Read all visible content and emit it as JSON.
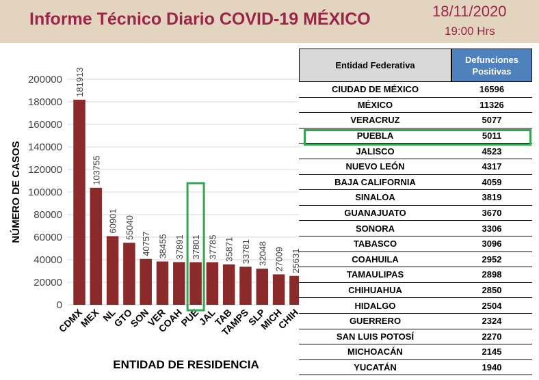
{
  "header": {
    "title": "Informe Técnico Diario COVID-19 MÉXICO",
    "date": "18/11/2020",
    "time": "19:00 Hrs"
  },
  "colors": {
    "bar": "#8b2a2a",
    "header_bg": "#e3d4bf",
    "accent": "#9d2449",
    "table_header": "#4f81bd",
    "highlight": "#2fa84f"
  },
  "chart_data": {
    "type": "bar",
    "xlabel": "ENTIDAD DE RESIDENCIA",
    "ylabel": "NÚMERO DE CASOS",
    "ylim": [
      0,
      200000
    ],
    "yticks": [
      "0",
      "20000",
      "40000",
      "60000",
      "80000",
      "100000",
      "120000",
      "140000",
      "160000",
      "180000",
      "200000"
    ],
    "grid": true,
    "categories": [
      "CDMX",
      "MEX",
      "NL",
      "GTO",
      "SON",
      "VER",
      "COAH",
      "PUE",
      "JAL",
      "TAB",
      "TAMPS",
      "SLP",
      "MICH",
      "CHIH"
    ],
    "values": [
      181913,
      103755,
      60901,
      55040,
      40757,
      38455,
      37891,
      37801,
      37785,
      35871,
      33781,
      32048,
      27009,
      25631
    ],
    "value_labels": [
      "181913",
      "103755",
      "60901",
      "55040",
      "40757",
      "38455",
      "37891",
      "37801",
      "37785",
      "35871",
      "33781",
      "32048",
      "27009",
      "25631"
    ],
    "highlight": "PUE"
  },
  "table": {
    "col_name": "Entidad Federativa",
    "col_value": "Defunciones Positivas",
    "highlight": "PUEBLA",
    "rows": [
      {
        "name": "CIUDAD DE MÉXICO",
        "value": "16596"
      },
      {
        "name": "MÉXICO",
        "value": "11326"
      },
      {
        "name": "VERACRUZ",
        "value": "5077"
      },
      {
        "name": "PUEBLA",
        "value": "5011"
      },
      {
        "name": "JALISCO",
        "value": "4523"
      },
      {
        "name": "NUEVO LEÓN",
        "value": "4317"
      },
      {
        "name": "BAJA CALIFORNIA",
        "value": "4059"
      },
      {
        "name": "SINALOA",
        "value": "3819"
      },
      {
        "name": "GUANAJUATO",
        "value": "3670"
      },
      {
        "name": "SONORA",
        "value": "3306"
      },
      {
        "name": "TABASCO",
        "value": "3096"
      },
      {
        "name": "COAHUILA",
        "value": "2952"
      },
      {
        "name": "TAMAULIPAS",
        "value": "2898"
      },
      {
        "name": "CHIHUAHUA",
        "value": "2850"
      },
      {
        "name": "HIDALGO",
        "value": "2504"
      },
      {
        "name": "GUERRERO",
        "value": "2324"
      },
      {
        "name": "SAN LUIS POTOSÍ",
        "value": "2270"
      },
      {
        "name": "MICHOACÁN",
        "value": "2145"
      },
      {
        "name": "YUCATÁN",
        "value": "1940"
      }
    ]
  }
}
